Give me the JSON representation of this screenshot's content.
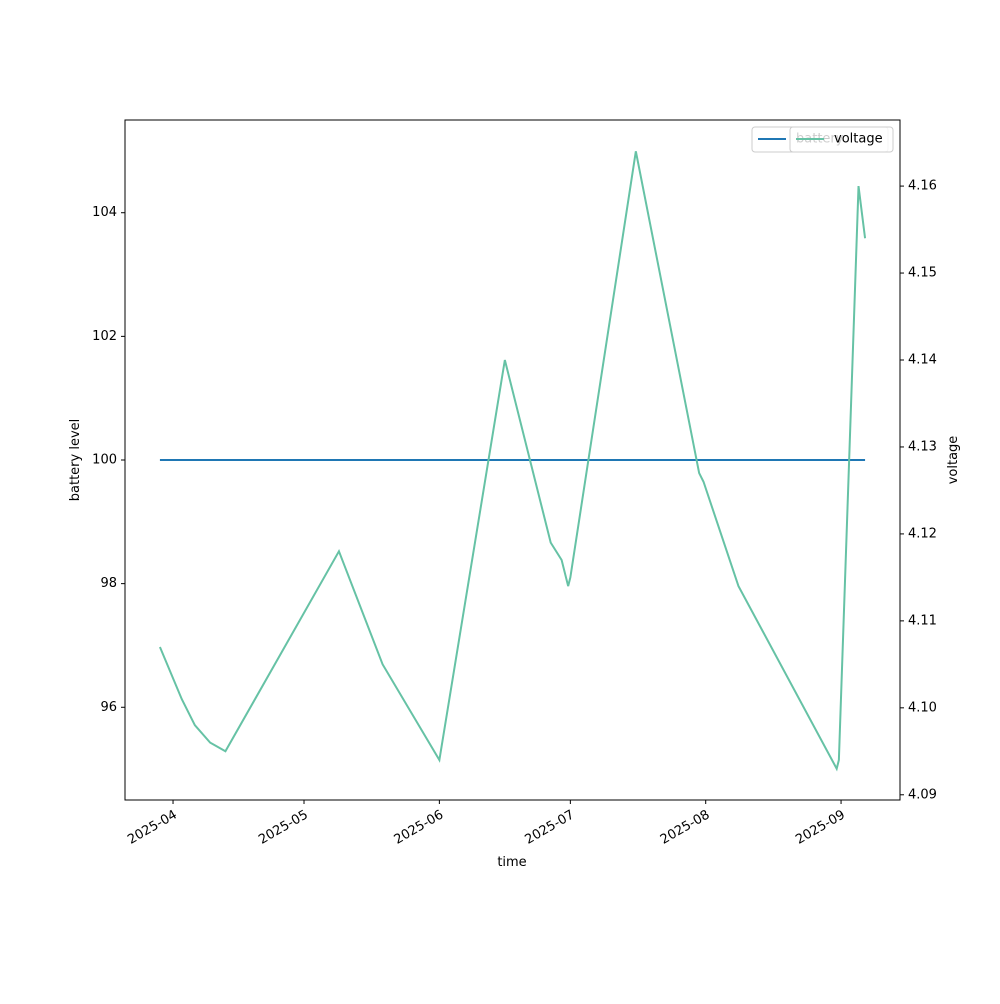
{
  "chart_data": {
    "type": "line",
    "x_label": "time",
    "y_label": "battery level",
    "y2_label": "voltage",
    "x": [
      20176,
      20181,
      20184,
      20187.5,
      20191,
      20217,
      20227,
      20240,
      20255,
      20265.5,
      20268,
      20269.5,
      20270,
      20285,
      20299.5,
      20300.5,
      20308.5,
      20331,
      20331.5,
      20336,
      20337.5
    ],
    "series": [
      {
        "name": "battery",
        "color": "#1f77b4",
        "axis": "y",
        "values": [
          100,
          100,
          100,
          100,
          100,
          100,
          100,
          100,
          100,
          100,
          100,
          100,
          100,
          100,
          100,
          100,
          100,
          100,
          100,
          100,
          100
        ]
      },
      {
        "name": "voltage",
        "color": "#66c2a5",
        "axis": "y2",
        "values": [
          4.107,
          4.101,
          4.098,
          4.096,
          4.095,
          4.118,
          4.105,
          4.094,
          4.14,
          4.119,
          4.117,
          4.114,
          4.115,
          4.164,
          4.127,
          4.126,
          4.114,
          4.093,
          4.094,
          4.16,
          4.154
        ]
      }
    ],
    "xlim": [
      20168,
      20345.5
    ],
    "xticks": [
      {
        "value": 20179,
        "label": "2025-04"
      },
      {
        "value": 20209,
        "label": "2025-05"
      },
      {
        "value": 20240,
        "label": "2025-06"
      },
      {
        "value": 20270,
        "label": "2025-07"
      },
      {
        "value": 20301,
        "label": "2025-08"
      },
      {
        "value": 20332,
        "label": "2025-09"
      }
    ],
    "ylim": [
      94.5,
      105.5
    ],
    "yticks": [
      96,
      98,
      100,
      102,
      104
    ],
    "y2lim": [
      4.0894,
      4.1676
    ],
    "y2ticks": [
      4.09,
      4.1,
      4.11,
      4.12,
      4.13,
      4.14,
      4.15,
      4.16
    ],
    "y2tick_labels": [
      "4.09",
      "4.10",
      "4.11",
      "4.12",
      "4.13",
      "4.14",
      "4.15",
      "4.16"
    ],
    "legend": "upper right"
  }
}
